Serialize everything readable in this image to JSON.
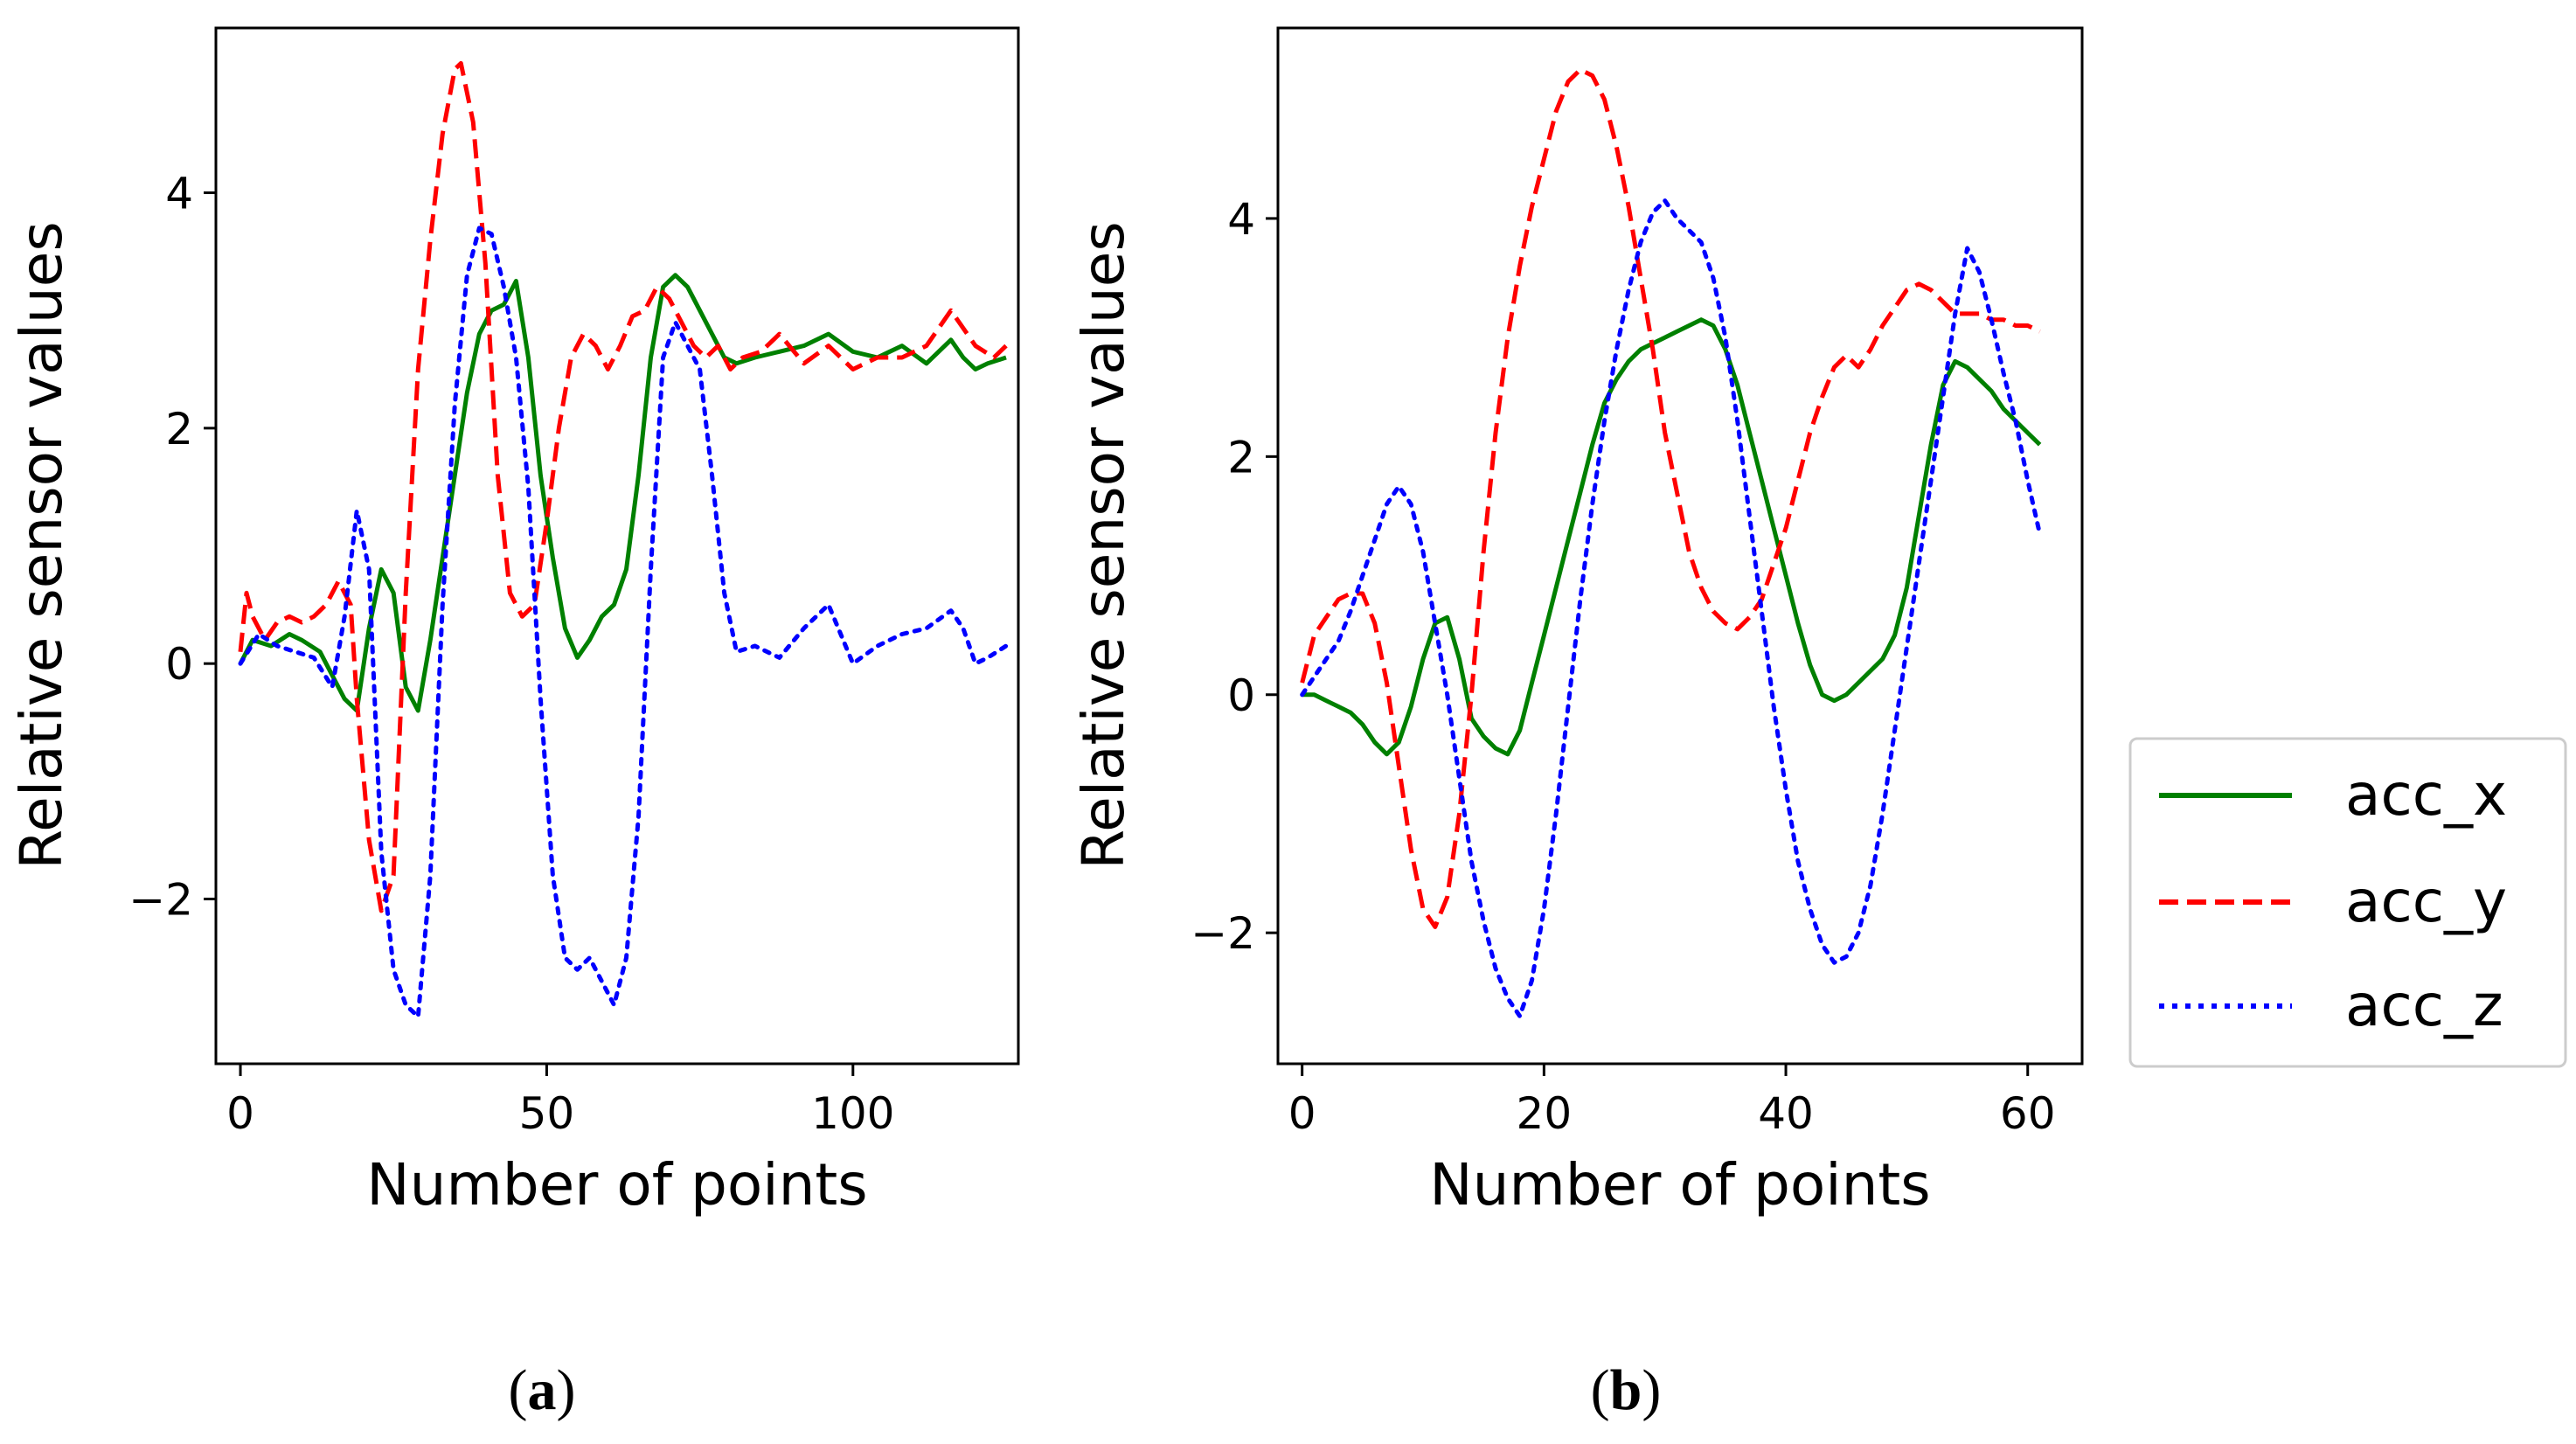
{
  "chart_data": [
    {
      "type": "line",
      "caption": {
        "open": "(",
        "letter": "a",
        "close": ")"
      },
      "xlabel": "Number of points",
      "ylabel": "Relative sensor values",
      "xlim": [
        -4,
        127
      ],
      "ylim": [
        -3.4,
        5.4
      ],
      "xticks": [
        0,
        50,
        100
      ],
      "xtick_labels": [
        "0",
        "50",
        "100"
      ],
      "yticks": [
        -2,
        0,
        2,
        4
      ],
      "ytick_labels": [
        "−2",
        "0",
        "2",
        "4"
      ],
      "grid": false,
      "series": [
        {
          "name": "acc_x",
          "style": "solid",
          "color": "#008000",
          "x": [
            0,
            2,
            5,
            8,
            10,
            13,
            15,
            17,
            19,
            21,
            23,
            25,
            27,
            29,
            31,
            33,
            35,
            37,
            39,
            41,
            43,
            45,
            47,
            49,
            51,
            53,
            55,
            57,
            59,
            61,
            63,
            65,
            67,
            69,
            71,
            73,
            75,
            77,
            79,
            81,
            84,
            88,
            92,
            96,
            100,
            104,
            108,
            112,
            116,
            118,
            120,
            122,
            125
          ],
          "y": [
            0,
            0.2,
            0.15,
            0.25,
            0.2,
            0.1,
            -0.1,
            -0.3,
            -0.4,
            0.3,
            0.8,
            0.6,
            -0.2,
            -0.4,
            0.2,
            0.9,
            1.6,
            2.3,
            2.8,
            3.0,
            3.05,
            3.25,
            2.6,
            1.6,
            0.9,
            0.3,
            0.05,
            0.2,
            0.4,
            0.5,
            0.8,
            1.6,
            2.6,
            3.2,
            3.3,
            3.2,
            3.0,
            2.8,
            2.6,
            2.55,
            2.6,
            2.65,
            2.7,
            2.8,
            2.65,
            2.6,
            2.7,
            2.55,
            2.75,
            2.6,
            2.5,
            2.55,
            2.6
          ]
        },
        {
          "name": "acc_y",
          "style": "dashed",
          "color": "#ff0000",
          "x": [
            0,
            1,
            2,
            4,
            6,
            8,
            10,
            12,
            14,
            16,
            18,
            19,
            21,
            23,
            25,
            27,
            29,
            31,
            33,
            35,
            36,
            38,
            40,
            42,
            44,
            46,
            48,
            50,
            52,
            54,
            56,
            58,
            60,
            62,
            64,
            66,
            68,
            70,
            72,
            74,
            76,
            78,
            80,
            82,
            85,
            88,
            92,
            96,
            100,
            104,
            108,
            112,
            116,
            120,
            123,
            125
          ],
          "y": [
            0.1,
            0.6,
            0.4,
            0.2,
            0.35,
            0.4,
            0.35,
            0.4,
            0.5,
            0.7,
            0.5,
            -0.3,
            -1.5,
            -2.1,
            -1.8,
            0.6,
            2.5,
            3.6,
            4.5,
            5.05,
            5.1,
            4.6,
            3.4,
            1.6,
            0.6,
            0.4,
            0.5,
            1.2,
            2.0,
            2.6,
            2.8,
            2.7,
            2.5,
            2.7,
            2.95,
            3.0,
            3.2,
            3.1,
            2.9,
            2.7,
            2.6,
            2.7,
            2.5,
            2.6,
            2.65,
            2.8,
            2.55,
            2.7,
            2.5,
            2.6,
            2.6,
            2.7,
            3.0,
            2.7,
            2.6,
            2.7
          ]
        },
        {
          "name": "acc_z",
          "style": "dotted",
          "color": "#0000ff",
          "x": [
            0,
            3,
            6,
            9,
            12,
            15,
            17,
            19,
            21,
            23,
            25,
            27,
            29,
            31,
            33,
            35,
            37,
            39,
            41,
            43,
            45,
            47,
            49,
            51,
            53,
            55,
            57,
            59,
            61,
            63,
            65,
            67,
            69,
            71,
            73,
            75,
            77,
            79,
            81,
            84,
            88,
            92,
            96,
            100,
            104,
            108,
            112,
            116,
            118,
            120,
            122,
            125
          ],
          "y": [
            0,
            0.25,
            0.15,
            0.1,
            0.05,
            -0.2,
            0.4,
            1.3,
            0.8,
            -1.6,
            -2.6,
            -2.9,
            -3.0,
            -1.8,
            0.5,
            2.2,
            3.3,
            3.7,
            3.65,
            3.2,
            2.6,
            1.5,
            -0.3,
            -1.8,
            -2.5,
            -2.6,
            -2.5,
            -2.7,
            -2.9,
            -2.5,
            -1.3,
            0.8,
            2.6,
            2.9,
            2.7,
            2.5,
            1.6,
            0.6,
            0.1,
            0.15,
            0.05,
            0.3,
            0.5,
            0.0,
            0.15,
            0.25,
            0.3,
            0.45,
            0.3,
            0.0,
            0.05,
            0.15
          ]
        }
      ]
    },
    {
      "type": "line",
      "caption": {
        "open": "(",
        "letter": "b",
        "close": ")"
      },
      "xlabel": "Number of points",
      "ylabel": "Relative sensor values",
      "xlim": [
        -2,
        64.5
      ],
      "ylim": [
        -3.1,
        5.6
      ],
      "xticks": [
        0,
        20,
        40,
        60
      ],
      "xtick_labels": [
        "0",
        "20",
        "40",
        "60"
      ],
      "yticks": [
        -2,
        0,
        2,
        4
      ],
      "ytick_labels": [
        "−2",
        "0",
        "2",
        "4"
      ],
      "grid": false,
      "series": [
        {
          "name": "acc_x",
          "style": "solid",
          "color": "#008000",
          "x": [
            0,
            1,
            2,
            3,
            4,
            5,
            6,
            7,
            8,
            9,
            10,
            11,
            12,
            13,
            14,
            15,
            16,
            17,
            18,
            19,
            20,
            21,
            22,
            23,
            24,
            25,
            26,
            27,
            28,
            29,
            30,
            31,
            32,
            33,
            34,
            35,
            36,
            37,
            38,
            39,
            40,
            41,
            42,
            43,
            44,
            45,
            46,
            47,
            48,
            49,
            50,
            51,
            52,
            53,
            54,
            55,
            56,
            57,
            58,
            59,
            60,
            61
          ],
          "y": [
            0.0,
            0.0,
            -0.05,
            -0.1,
            -0.15,
            -0.25,
            -0.4,
            -0.5,
            -0.4,
            -0.1,
            0.3,
            0.6,
            0.65,
            0.3,
            -0.2,
            -0.35,
            -0.45,
            -0.5,
            -0.3,
            0.1,
            0.5,
            0.9,
            1.3,
            1.7,
            2.1,
            2.45,
            2.65,
            2.8,
            2.9,
            2.95,
            3.0,
            3.05,
            3.1,
            3.15,
            3.1,
            2.9,
            2.6,
            2.2,
            1.8,
            1.4,
            1.0,
            0.6,
            0.25,
            0.0,
            -0.05,
            0.0,
            0.1,
            0.2,
            0.3,
            0.5,
            0.9,
            1.5,
            2.1,
            2.6,
            2.8,
            2.75,
            2.65,
            2.55,
            2.4,
            2.3,
            2.2,
            2.1
          ]
        },
        {
          "name": "acc_y",
          "style": "dashed",
          "color": "#ff0000",
          "x": [
            0,
            1,
            2,
            3,
            4,
            5,
            6,
            7,
            8,
            9,
            10,
            11,
            12,
            13,
            14,
            15,
            16,
            17,
            18,
            19,
            20,
            21,
            22,
            23,
            24,
            25,
            26,
            27,
            28,
            29,
            30,
            31,
            32,
            33,
            34,
            35,
            36,
            37,
            38,
            39,
            40,
            41,
            42,
            43,
            44,
            45,
            46,
            47,
            48,
            49,
            50,
            51,
            52,
            53,
            54,
            55,
            56,
            57,
            58,
            59,
            60,
            61
          ],
          "y": [
            0.1,
            0.5,
            0.65,
            0.8,
            0.85,
            0.85,
            0.6,
            0.1,
            -0.6,
            -1.3,
            -1.8,
            -1.95,
            -1.7,
            -1.0,
            0.0,
            1.2,
            2.2,
            3.0,
            3.6,
            4.1,
            4.5,
            4.9,
            5.15,
            5.25,
            5.2,
            5.0,
            4.6,
            4.1,
            3.5,
            2.9,
            2.2,
            1.7,
            1.2,
            0.9,
            0.7,
            0.6,
            0.55,
            0.65,
            0.8,
            1.1,
            1.4,
            1.8,
            2.2,
            2.5,
            2.75,
            2.85,
            2.75,
            2.9,
            3.1,
            3.25,
            3.4,
            3.45,
            3.4,
            3.3,
            3.2,
            3.2,
            3.2,
            3.15,
            3.15,
            3.1,
            3.1,
            3.05
          ]
        },
        {
          "name": "acc_z",
          "style": "dotted",
          "color": "#0000ff",
          "x": [
            0,
            1,
            2,
            3,
            4,
            5,
            6,
            7,
            8,
            9,
            10,
            11,
            12,
            13,
            14,
            15,
            16,
            17,
            18,
            19,
            20,
            21,
            22,
            23,
            24,
            25,
            26,
            27,
            28,
            29,
            30,
            31,
            32,
            33,
            34,
            35,
            36,
            37,
            38,
            39,
            40,
            41,
            42,
            43,
            44,
            45,
            46,
            47,
            48,
            49,
            50,
            51,
            52,
            53,
            54,
            55,
            56,
            57,
            58,
            59,
            60,
            61
          ],
          "y": [
            0.0,
            0.15,
            0.3,
            0.45,
            0.7,
            1.0,
            1.3,
            1.6,
            1.75,
            1.6,
            1.2,
            0.6,
            0.0,
            -0.7,
            -1.4,
            -1.9,
            -2.3,
            -2.55,
            -2.7,
            -2.4,
            -1.8,
            -1.0,
            -0.1,
            0.8,
            1.6,
            2.3,
            2.9,
            3.4,
            3.8,
            4.05,
            4.15,
            4.0,
            3.9,
            3.8,
            3.5,
            3.0,
            2.3,
            1.5,
            0.7,
            -0.1,
            -0.8,
            -1.4,
            -1.8,
            -2.1,
            -2.25,
            -2.2,
            -2.0,
            -1.6,
            -1.0,
            -0.3,
            0.4,
            1.1,
            1.8,
            2.5,
            3.2,
            3.75,
            3.55,
            3.15,
            2.7,
            2.3,
            1.8,
            1.35
          ]
        }
      ]
    }
  ]
}
